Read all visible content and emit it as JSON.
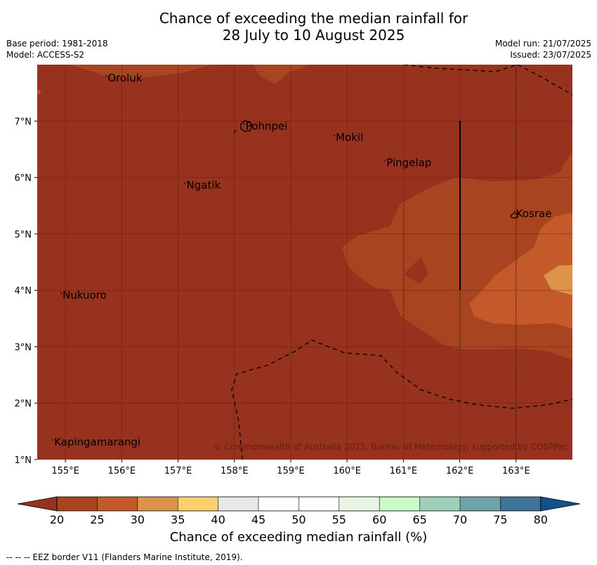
{
  "title": {
    "line1": "Chance of exceeding the median rainfall for",
    "line2": "28 July to 10 August 2025"
  },
  "meta": {
    "base_period": "Base period: 1981-2018",
    "model": "Model: ACCESS-S2",
    "model_run": "Model run: 21/07/2025",
    "issued": "Issued: 23/07/2025"
  },
  "axes": {
    "x_ticks": [
      "155°E",
      "156°E",
      "157°E",
      "158°E",
      "159°E",
      "160°E",
      "161°E",
      "162°E",
      "163°E"
    ],
    "y_ticks": [
      "1°N",
      "2°N",
      "3°N",
      "4°N",
      "5°N",
      "6°N",
      "7°N"
    ]
  },
  "places": [
    {
      "name": "Oroluk",
      "lon": 155.75,
      "lat": 7.7
    },
    {
      "name": "Pohnpei",
      "lon": 158.2,
      "lat": 6.85
    },
    {
      "name": "Mokil",
      "lon": 159.8,
      "lat": 6.65
    },
    {
      "name": "Pingelap",
      "lon": 160.7,
      "lat": 6.2
    },
    {
      "name": "Ngatik",
      "lon": 157.15,
      "lat": 5.8
    },
    {
      "name": "Kosrae",
      "lon": 163.0,
      "lat": 5.3
    },
    {
      "name": "Nukuoro",
      "lon": 154.95,
      "lat": 3.85
    },
    {
      "name": "Kapingamarangi",
      "lon": 154.8,
      "lat": 1.25
    }
  ],
  "copyright": "© Commonwealth of Australia 2025, Bureau of Meteorology, supported by COSPPac",
  "colorbar": {
    "label": "Chance of exceeding median rainfall (%)",
    "ticks": [
      "20",
      "25",
      "30",
      "35",
      "40",
      "45",
      "50",
      "55",
      "60",
      "65",
      "70",
      "75",
      "80"
    ],
    "colors": [
      "#a8441f",
      "#c45a2a",
      "#de9448",
      "#fcd06b",
      "#e8e8e8",
      "#ffffff",
      "#ffffff",
      "#e8f5e4",
      "#c9fac7",
      "#9ed0b7",
      "#6ea3a7",
      "#3f7498"
    ],
    "under_color": "#96321e",
    "over_color": "#13508c"
  },
  "map_colors": {
    "lt20": "#96321e",
    "c20_25": "#a8441f",
    "c25_30": "#c45a2a",
    "c30_35": "#de9448"
  },
  "footnote": "-- -- -- EEZ border V11 (Flanders Marine Institute, 2019)."
}
